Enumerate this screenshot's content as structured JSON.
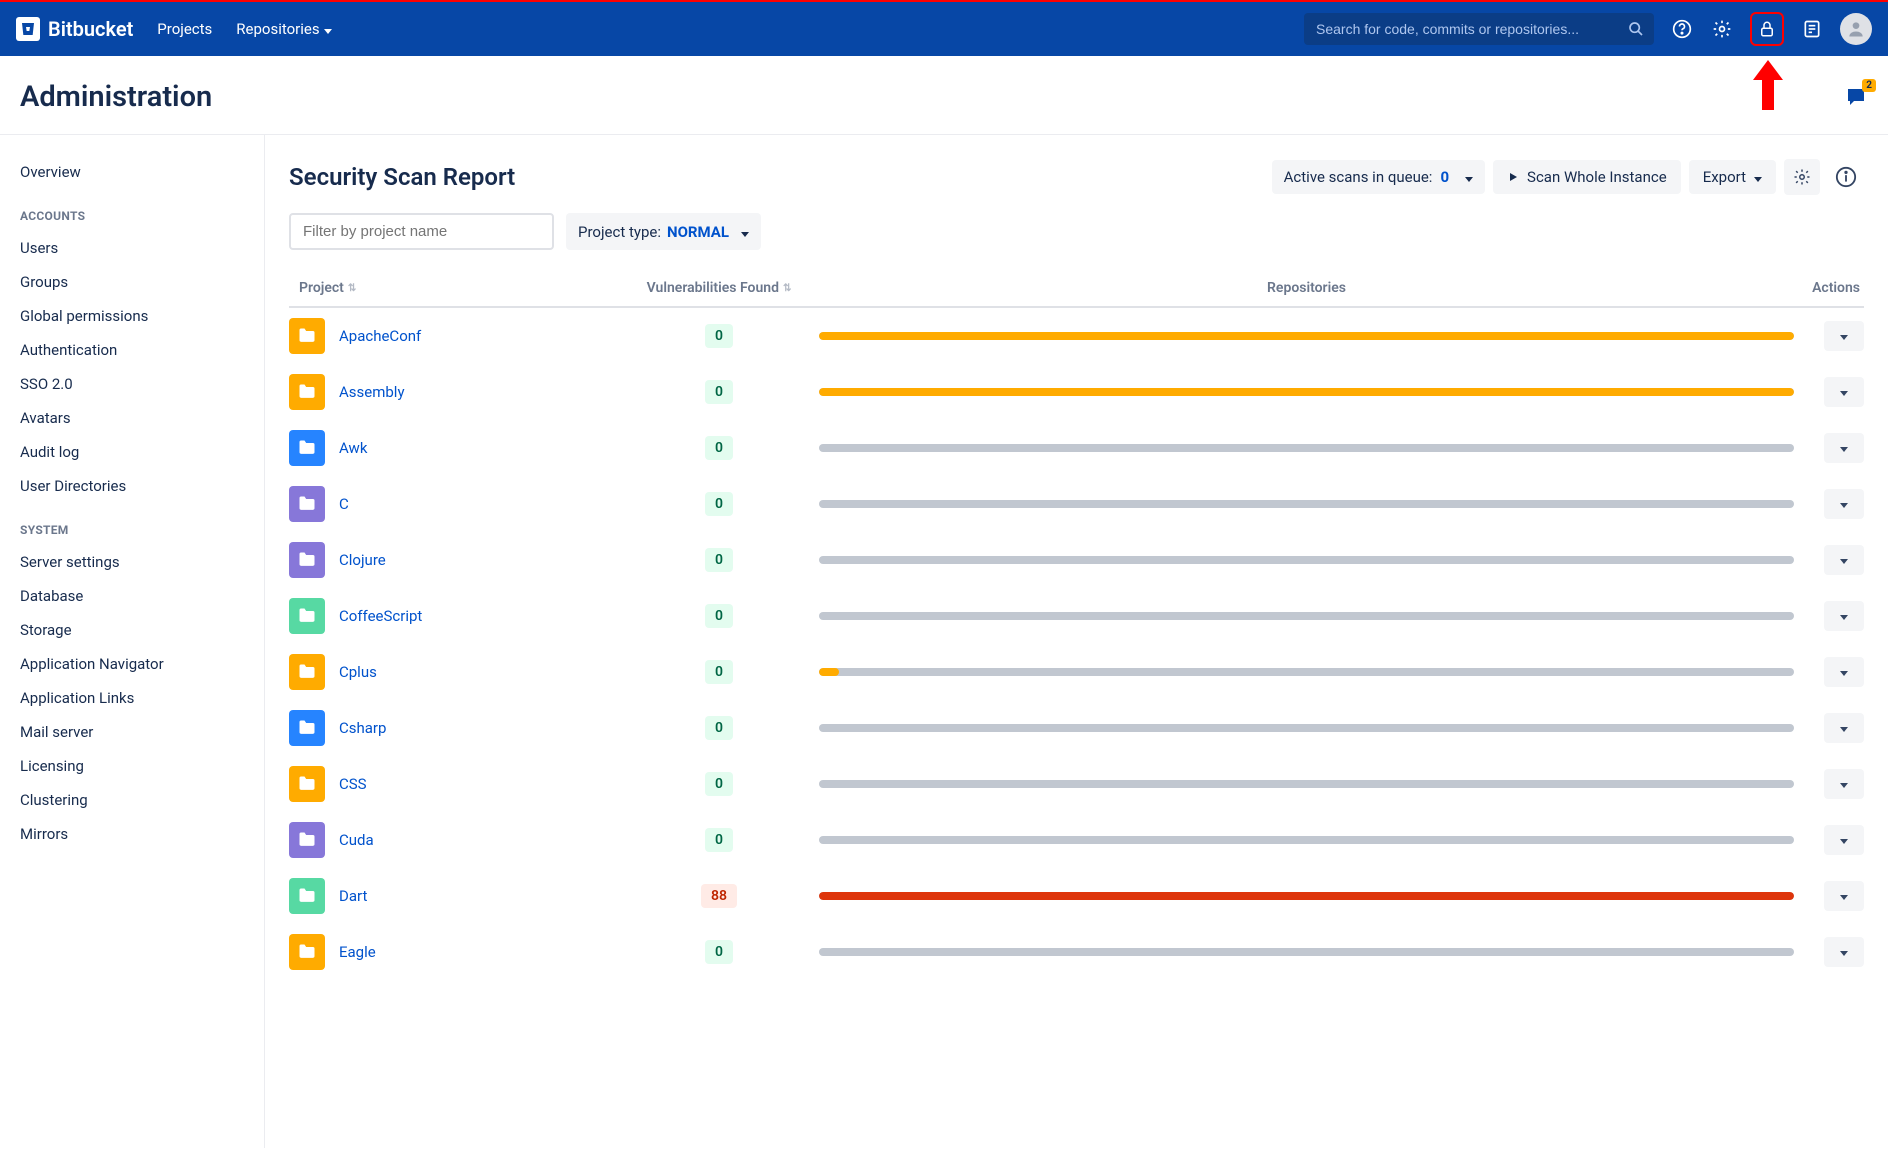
{
  "colors": {
    "primary": "#0747a6",
    "link": "#0052cc",
    "highlight_border": "#ff0000",
    "bar_orange": "#ffab00",
    "bar_grey": "#c1c7d0",
    "bar_red": "#de350b",
    "badge_green_bg": "#e3fcef",
    "badge_green_text": "#006644",
    "badge_red_bg": "#ffebe6",
    "badge_red_text": "#bf2600"
  },
  "topbar": {
    "product": "Bitbucket",
    "nav": {
      "projects": "Projects",
      "repositories": "Repositories"
    },
    "search_placeholder": "Search for code, commits or repositories..."
  },
  "header": {
    "title": "Administration",
    "feedback_count": "2"
  },
  "sidebar": {
    "overview": "Overview",
    "section_accounts": "ACCOUNTS",
    "accounts": {
      "users": "Users",
      "groups": "Groups",
      "global_permissions": "Global permissions",
      "authentication": "Authentication",
      "sso": "SSO 2.0",
      "avatars": "Avatars",
      "audit_log": "Audit log",
      "user_directories": "User Directories"
    },
    "section_system": "SYSTEM",
    "system": {
      "server_settings": "Server settings",
      "database": "Database",
      "storage": "Storage",
      "app_navigator": "Application Navigator",
      "app_links": "Application Links",
      "mail_server": "Mail server",
      "licensing": "Licensing",
      "clustering": "Clustering",
      "mirrors": "Mirrors"
    }
  },
  "main": {
    "title": "Security Scan Report",
    "queue_label": "Active scans in queue:",
    "queue_count": "0",
    "scan_button": "Scan Whole Instance",
    "export_button": "Export",
    "filter_placeholder": "Filter by project name",
    "proj_type_label": "Project type:",
    "proj_type_value": "NORMAL",
    "columns": {
      "project": "Project",
      "vuln": "Vulnerabilities Found",
      "repos": "Repositories",
      "actions": "Actions"
    },
    "rows": [
      {
        "name": "ApacheConf",
        "vuln": "0",
        "folder_color": "#ffab00",
        "bar_fill_pct": 100,
        "bar_color": "#ffab00"
      },
      {
        "name": "Assembly",
        "vuln": "0",
        "folder_color": "#ffab00",
        "bar_fill_pct": 100,
        "bar_color": "#ffab00"
      },
      {
        "name": "Awk",
        "vuln": "0",
        "folder_color": "#2684ff",
        "bar_fill_pct": 0,
        "bar_color": "#c1c7d0"
      },
      {
        "name": "C",
        "vuln": "0",
        "folder_color": "#8777d9",
        "bar_fill_pct": 0,
        "bar_color": "#c1c7d0"
      },
      {
        "name": "Clojure",
        "vuln": "0",
        "folder_color": "#8777d9",
        "bar_fill_pct": 0,
        "bar_color": "#c1c7d0"
      },
      {
        "name": "CoffeeScript",
        "vuln": "0",
        "folder_color": "#57d9a3",
        "bar_fill_pct": 0,
        "bar_color": "#c1c7d0"
      },
      {
        "name": "Cplus",
        "vuln": "0",
        "folder_color": "#ffab00",
        "bar_fill_pct": 2,
        "bar_color": "#ffab00"
      },
      {
        "name": "Csharp",
        "vuln": "0",
        "folder_color": "#2684ff",
        "bar_fill_pct": 0,
        "bar_color": "#c1c7d0"
      },
      {
        "name": "CSS",
        "vuln": "0",
        "folder_color": "#ffab00",
        "bar_fill_pct": 0,
        "bar_color": "#c1c7d0"
      },
      {
        "name": "Cuda",
        "vuln": "0",
        "folder_color": "#8777d9",
        "bar_fill_pct": 0,
        "bar_color": "#c1c7d0"
      },
      {
        "name": "Dart",
        "vuln": "88",
        "folder_color": "#57d9a3",
        "bar_fill_pct": 100,
        "bar_color": "#de350b"
      },
      {
        "name": "Eagle",
        "vuln": "0",
        "folder_color": "#ffab00",
        "bar_fill_pct": 0,
        "bar_color": "#c1c7d0"
      }
    ]
  }
}
